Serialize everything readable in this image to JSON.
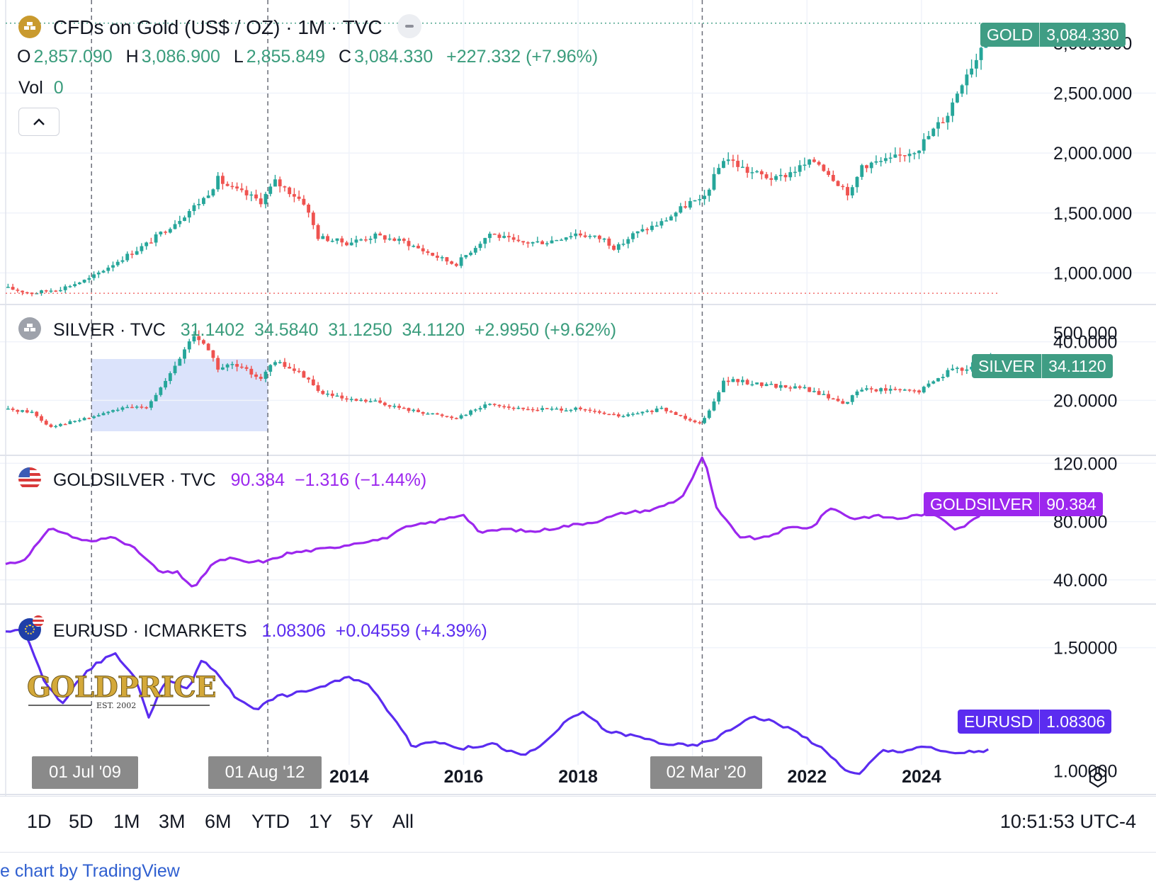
{
  "panes": {
    "gold": {
      "name": "CFDs on Gold (US$ / OZ) · 1M · TVC",
      "ohlc": {
        "o_label": "O",
        "o": "2,857.090",
        "h_label": "H",
        "h": "3,086.900",
        "l_label": "L",
        "l": "2,855.849",
        "c_label": "C",
        "c": "3,084.330",
        "change": "+227.332 (+7.96%)"
      },
      "vol_label": "Vol",
      "vol_value": "0",
      "price_label": {
        "symbol": "GOLD",
        "value": "3,084.330"
      },
      "axis_ticks": [
        "2,500.000",
        "2,000.000",
        "1,500.000",
        "1,000.000",
        "500.000"
      ],
      "partial_tick": "3,000.000",
      "collapse_icon": "chevron-up-icon",
      "logo_icon": "gold-bars-icon"
    },
    "silver": {
      "name": "SILVER · TVC",
      "values": "31.1402  34.5840  31.1250  34.1120  +2.9950 (+9.62%)",
      "price_label": {
        "symbol": "SILVER",
        "value": "34.1120"
      },
      "axis_ticks": [
        "40.0000",
        "20.0000"
      ],
      "logo_icon": "silver-bars-icon"
    },
    "goldsilver": {
      "name": "GOLDSILVER · TVC",
      "values": "90.384  −1.316 (−1.44%)",
      "price_label": {
        "symbol": "GOLDSILVER",
        "value": "90.384"
      },
      "axis_ticks": [
        "120.000",
        "80.000",
        "40.000"
      ],
      "logo_icon": "us-flag-icon"
    },
    "eurusd": {
      "name": "EURUSD · ICMARKETS",
      "values": "1.08306  +0.04559 (+4.39%)",
      "price_label": {
        "symbol": "EURUSD",
        "value": "1.08306"
      },
      "axis_ticks": [
        "1.50000",
        "1.00000"
      ],
      "logo_icon": "eu-us-flag-icon"
    }
  },
  "time_axis": {
    "labels": [
      "2014",
      "2016",
      "2018",
      "2022",
      "2024"
    ],
    "crosshair_dates": [
      "01 Jul '09",
      "01 Aug '12",
      "02 Mar '20"
    ]
  },
  "watermark": {
    "text": "GOLDPRICE",
    "sub": "EST. 2002"
  },
  "range_buttons": [
    "1D",
    "5D",
    "1M",
    "3M",
    "6M",
    "YTD",
    "1Y",
    "5Y",
    "All"
  ],
  "clock": "10:51:53 UTC-4",
  "footer": "e chart by TradingView",
  "colors": {
    "up": "#26a69a",
    "down": "#ef5350",
    "goldsilver": "#9c27ee",
    "eurusd": "#5b2cf0",
    "highlight": "#d7e0fb"
  },
  "chart_data": [
    {
      "type": "candlestick",
      "title": "CFDs on Gold (US$ / OZ) · 1M · TVC",
      "x": [
        2008.0,
        2008.5,
        2009.0,
        2009.5,
        2010.0,
        2010.5,
        2011.0,
        2011.5,
        2011.75,
        2012.0,
        2012.5,
        2012.75,
        2013.0,
        2013.25,
        2013.5,
        2014.0,
        2014.5,
        2015.0,
        2015.5,
        2015.9,
        2016.5,
        2017.0,
        2017.5,
        2018.0,
        2018.5,
        2018.7,
        2019.0,
        2019.5,
        2020.0,
        2020.2,
        2020.6,
        2021.0,
        2021.5,
        2022.0,
        2022.2,
        2022.8,
        2023.0,
        2023.5,
        2024.0,
        2024.5,
        2024.8,
        2025.0,
        2025.2
      ],
      "values": [
        880,
        830,
        870,
        950,
        1100,
        1240,
        1420,
        1620,
        1780,
        1700,
        1600,
        1760,
        1680,
        1590,
        1300,
        1250,
        1310,
        1260,
        1150,
        1070,
        1330,
        1250,
        1260,
        1330,
        1280,
        1200,
        1320,
        1420,
        1590,
        1590,
        1970,
        1850,
        1780,
        1900,
        1940,
        1650,
        1900,
        1940,
        2050,
        2330,
        2660,
        2790,
        3084
      ],
      "ylim": [
        500,
        3100
      ],
      "axis_ticks": [
        500,
        1000,
        1500,
        2000,
        2500
      ]
    },
    {
      "type": "candlestick",
      "title": "SILVER · TVC",
      "x": [
        2008.0,
        2008.5,
        2008.8,
        2009.5,
        2010.0,
        2010.5,
        2010.9,
        2011.3,
        2011.5,
        2011.75,
        2012.0,
        2012.5,
        2012.75,
        2013.0,
        2013.3,
        2013.5,
        2014.0,
        2014.5,
        2015.0,
        2015.9,
        2016.5,
        2017.0,
        2018.0,
        2018.8,
        2019.5,
        2020.2,
        2020.6,
        2021.0,
        2022.0,
        2022.7,
        2023.0,
        2024.0,
        2024.5,
        2024.8,
        2025.2
      ],
      "values": [
        17,
        16,
        11,
        14,
        17,
        18,
        28,
        42,
        40,
        31,
        32,
        28,
        33,
        31,
        28,
        23,
        20,
        19.5,
        17,
        14,
        19,
        17,
        17,
        14.5,
        17,
        12,
        27,
        26,
        24,
        19,
        24,
        23,
        30,
        31,
        34.1
      ],
      "ylim": [
        0,
        45
      ],
      "axis_ticks": [
        20,
        40
      ]
    },
    {
      "type": "line",
      "title": "GOLDSILVER · TVC",
      "x": [
        2008.0,
        2008.3,
        2008.8,
        2009.2,
        2009.5,
        2009.9,
        2010.3,
        2010.7,
        2011.0,
        2011.3,
        2011.6,
        2011.9,
        2012.2,
        2012.6,
        2012.9,
        2013.3,
        2013.7,
        2014.2,
        2014.6,
        2015.0,
        2015.5,
        2016.0,
        2016.3,
        2016.7,
        2017.2,
        2017.8,
        2018.3,
        2018.8,
        2019.3,
        2019.8,
        2020.0,
        2020.2,
        2020.4,
        2020.8,
        2021.2,
        2021.7,
        2022.1,
        2022.4,
        2022.8,
        2023.2,
        2023.6,
        2024.0,
        2024.3,
        2024.6,
        2024.8,
        2025.2
      ],
      "values": [
        51,
        53,
        76,
        69,
        66,
        70,
        60,
        45,
        45,
        34,
        51,
        55,
        52,
        53,
        58,
        60,
        62,
        66,
        68,
        76,
        80,
        85,
        72,
        75,
        73,
        77,
        80,
        86,
        88,
        96,
        110,
        126,
        90,
        70,
        68,
        76,
        76,
        90,
        82,
        84,
        82,
        85,
        84,
        75,
        78,
        90.4
      ],
      "ylim": [
        20,
        125
      ],
      "axis_ticks": [
        40,
        80,
        120
      ]
    },
    {
      "type": "line",
      "title": "EURUSD · ICMARKETS",
      "x": [
        2008.0,
        2008.3,
        2008.7,
        2009.0,
        2009.2,
        2009.5,
        2009.9,
        2010.3,
        2010.5,
        2010.8,
        2011.2,
        2011.4,
        2011.7,
        2012.0,
        2012.4,
        2012.7,
        2013.0,
        2013.5,
        2014.0,
        2014.3,
        2014.6,
        2014.9,
        2015.1,
        2015.5,
        2016.0,
        2016.5,
        2017.0,
        2017.3,
        2017.8,
        2018.1,
        2018.5,
        2019.0,
        2019.5,
        2020.0,
        2020.3,
        2020.7,
        2021.0,
        2021.4,
        2021.8,
        2022.2,
        2022.7,
        2022.9,
        2023.3,
        2023.7,
        2024.0,
        2024.5,
        2025.2
      ],
      "values": [
        1.56,
        1.58,
        1.35,
        1.27,
        1.35,
        1.42,
        1.48,
        1.36,
        1.22,
        1.37,
        1.33,
        1.45,
        1.4,
        1.3,
        1.25,
        1.3,
        1.31,
        1.34,
        1.38,
        1.36,
        1.27,
        1.18,
        1.1,
        1.12,
        1.09,
        1.11,
        1.06,
        1.09,
        1.2,
        1.24,
        1.16,
        1.14,
        1.11,
        1.1,
        1.12,
        1.17,
        1.22,
        1.2,
        1.16,
        1.1,
        1.0,
        0.98,
        1.08,
        1.08,
        1.1,
        1.07,
        1.08306
      ],
      "ylim": [
        0.9,
        1.62
      ],
      "axis_ticks": [
        1.0,
        1.5
      ]
    }
  ]
}
